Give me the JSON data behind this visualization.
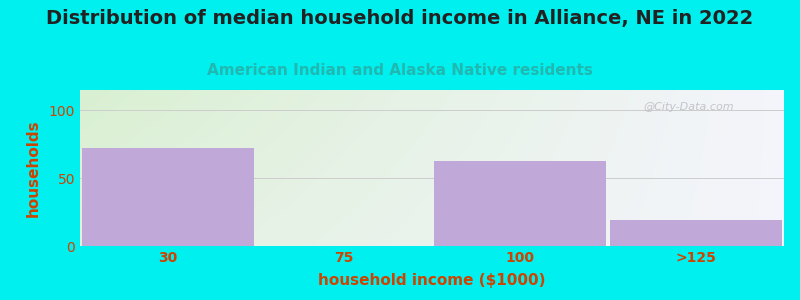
{
  "title": "Distribution of median household income in Alliance, NE in 2022",
  "subtitle": "American Indian and Alaska Native residents",
  "xlabel": "household income ($1000)",
  "ylabel": "households",
  "categories": [
    "30",
    "75",
    "100",
    ">125"
  ],
  "values": [
    72,
    0,
    63,
    19
  ],
  "bar_color": "#c0a8d8",
  "background_color": "#00efef",
  "plot_bg_left": "#d8efd0",
  "plot_bg_right": "#f5f5f8",
  "yticks": [
    0,
    50,
    100
  ],
  "ylim": [
    0,
    115
  ],
  "title_fontsize": 14,
  "subtitle_fontsize": 11,
  "subtitle_color": "#20b8b0",
  "axis_label_color": "#cc4400",
  "tick_color": "#cc4400",
  "grid_color": "#cccccc",
  "watermark": "@City-Data.com"
}
